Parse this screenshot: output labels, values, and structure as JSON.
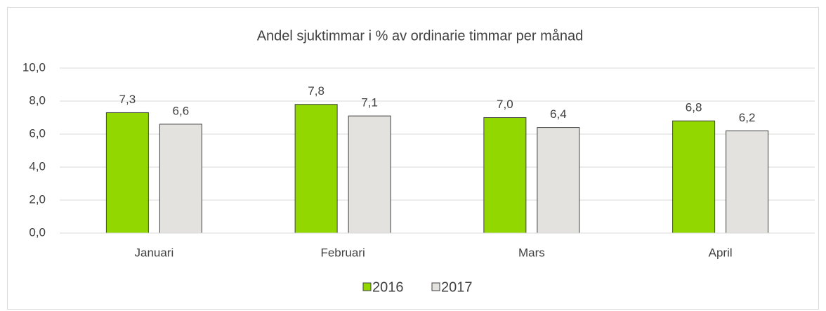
{
  "chart_data": {
    "type": "bar",
    "title": "Andel sjuktimmar i % av ordinarie timmar per månad",
    "categories": [
      "Januari",
      "Februari",
      "Mars",
      "April"
    ],
    "series": [
      {
        "name": "2016",
        "color": "#92d800",
        "values": [
          7.3,
          7.8,
          7.0,
          6.8
        ],
        "value_labels": [
          "7,3",
          "7,8",
          "7,0",
          "6,8"
        ]
      },
      {
        "name": "2017",
        "color": "#e3e2de",
        "values": [
          6.6,
          7.1,
          6.4,
          6.2
        ],
        "value_labels": [
          "6,6",
          "7,1",
          "6,4",
          "6,2"
        ]
      }
    ],
    "ylim": [
      0,
      10
    ],
    "yticks": [
      {
        "value": 0,
        "label": "0,0"
      },
      {
        "value": 2,
        "label": "2,0"
      },
      {
        "value": 4,
        "label": "4,0"
      },
      {
        "value": 6,
        "label": "6,0"
      },
      {
        "value": 8,
        "label": "8,0"
      },
      {
        "value": 10,
        "label": "10,0"
      }
    ],
    "grid": true,
    "legend": "bottom"
  }
}
